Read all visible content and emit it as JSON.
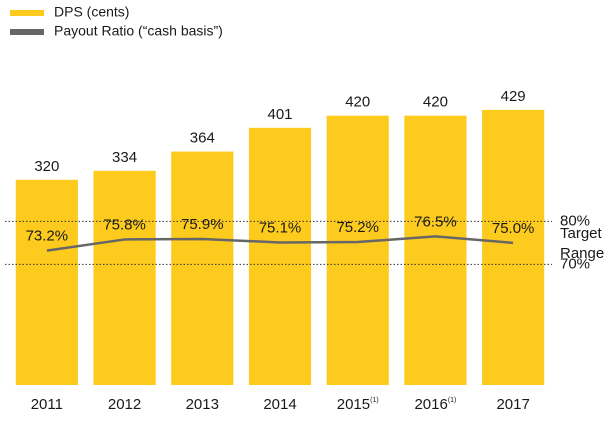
{
  "chart_data": {
    "type": "bar",
    "categories": [
      "2011",
      "2012",
      "2013",
      "2014",
      "2015",
      "2016",
      "2017"
    ],
    "category_notes": [
      null,
      null,
      null,
      null,
      "(1)",
      "(1)",
      null
    ],
    "series": [
      {
        "name": "DPS (cents)",
        "color": "#fdcb1d",
        "type": "bar",
        "values": [
          320,
          334,
          364,
          401,
          420,
          420,
          429
        ]
      },
      {
        "name": "Payout Ratio (“cash basis”)",
        "color": "#666666",
        "type": "line",
        "axis": "y2",
        "values": [
          73.2,
          75.8,
          75.9,
          75.1,
          75.2,
          76.5,
          75.0
        ],
        "value_labels": [
          "73.2%",
          "75.8%",
          "75.9%",
          "75.1%",
          "75.2%",
          "76.5%",
          "75.0%"
        ]
      }
    ],
    "ylim": [
      0,
      460
    ],
    "y2lim": [
      42,
      110.5
    ],
    "y2ticks": [
      {
        "value": 80,
        "label": "80%"
      },
      {
        "value": 70,
        "label": "70%"
      }
    ],
    "annotation": [
      "Target",
      "Range"
    ],
    "legend": "top-left"
  }
}
